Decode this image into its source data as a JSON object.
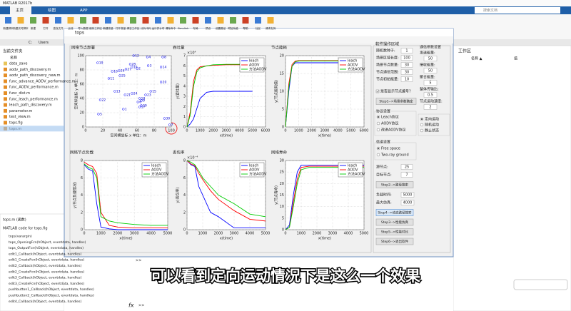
{
  "app": {
    "title": "MATLAB R2017b",
    "tabs": [
      "主页",
      "绘图",
      "APP"
    ],
    "search": "搜索文档",
    "ribbon": [
      "新建脚本",
      "新建实时脚本",
      "新建",
      "打开",
      "查找文件",
      "比较",
      "导入数据",
      "保存工作区",
      "新建变量",
      "打开变量",
      "清空工作区",
      "分析代码",
      "运行并计时",
      "清除命令",
      "Simulink",
      "布局",
      "预设",
      "设置路径",
      "附加功能",
      "帮助",
      "社区",
      "请求支持"
    ],
    "path": [
      "C:",
      "Users"
    ]
  },
  "files": {
    "header": "当前文件夹",
    "column": "名称",
    "items": [
      "data_save",
      "aodv_path_discovery.m",
      "aodv_path_discovery_new.m",
      "func_advance_AODV_performance.m",
      "func_AODV_performance.m",
      "func_dist.m",
      "func_leach_performance.m",
      "leach_path_discovery.m",
      "parameter.m",
      "test_view.m",
      "tops.fig",
      "tops.m"
    ]
  },
  "details": {
    "title": "tops.m (函数)",
    "desc": "MATLAB code for tops.fig",
    "items": [
      "tops(varargin)",
      "tops_OpeningFcn(hObject, eventdata, handles)",
      "tops_OutputFcn(hObject, eventdata, handles)",
      "edit1_Callback(hObject, eventdata, handles)",
      "edit1_CreateFcn(hObject, eventdata, handles)",
      "edit2_Callback(hObject, eventdata, handles)",
      "edit2_CreateFcn(hObject, eventdata, handles)",
      "edit3_Callback(hObject, eventdata, handles)",
      "edit3_CreateFcn(hObject, eventdata, handles)",
      "pushbutton1_Callback(hObject, eventdata, handles)",
      "pushbutton2_Callback(hObject, eventdata, handles)",
      "edit4_Callback(hObject, eventdata, handles)"
    ]
  },
  "workspace": {
    "title": "工作区",
    "name": "名称 ▲",
    "value": "值"
  },
  "command": {
    "prompt": ">>",
    "fx": "fx"
  },
  "subtitle": "可以看到定向运动情况下是这么一个效果",
  "figure": {
    "title": "tops",
    "plots": [
      {
        "type": "scatter",
        "title": "网络节点部署",
        "xlabel": "空间横坐标 x  单位：m",
        "ylabel": "空间纵坐标 y  单位：m",
        "xlim": [
          0,
          100
        ],
        "ylim": [
          0,
          100
        ],
        "xticks": [
          0,
          20,
          40,
          60,
          80,
          100
        ],
        "yticks": [
          0,
          20,
          40,
          60,
          80,
          100
        ],
        "x": [
          44,
          60,
          73,
          72,
          15,
          61,
          98,
          90,
          65,
          54,
          27,
          56,
          34,
          88,
          76,
          31,
          63,
          63,
          14,
          88,
          46,
          17,
          70,
          54,
          40,
          39,
          47,
          52,
          65,
          92
        ],
        "y": [
          25,
          82,
          86,
          98,
          18,
          35,
          3,
          98,
          37,
          84,
          68,
          100,
          50,
          84,
          50,
          78,
          28,
          40,
          90,
          63,
          45,
          38,
          45,
          47,
          72,
          79,
          81,
          88,
          30,
          12
        ],
        "labels": [
          1,
          2,
          3,
          4,
          5,
          6,
          7,
          8,
          9,
          10,
          11,
          12,
          13,
          14,
          15,
          16,
          17,
          18,
          19,
          20,
          21,
          22,
          23,
          24,
          25,
          26,
          27,
          28,
          29,
          30
        ]
      },
      {
        "type": "line",
        "title": "吞吐量",
        "multiplier": "×10⁴",
        "xlabel": "x(time)",
        "ylabel": "y(吞吐量)",
        "xlim": [
          0,
          6000
        ],
        "ylim": [
          0,
          7
        ],
        "xticks": [
          0,
          1000,
          2000,
          3000,
          4000,
          5000,
          6000
        ],
        "yticks": [
          0,
          1,
          2,
          3,
          4,
          5,
          6,
          7
        ],
        "x": [
          0,
          250,
          500,
          750,
          1000,
          1500,
          2000,
          3000,
          4000,
          5000
        ],
        "series": [
          {
            "name": "leach",
            "color": "#0000ff",
            "values": [
              0,
              0.3,
              0.8,
              1.8,
              2.8,
              3.4,
              3.5,
              3.5,
              3.5,
              3.5
            ]
          },
          {
            "name": "AODV",
            "color": "#ff0000",
            "values": [
              0,
              1.5,
              4.5,
              5.6,
              5.9,
              6,
              6.05,
              6.1,
              6.1,
              6.1
            ]
          },
          {
            "name": "方法AODV",
            "color": "#00cc00",
            "values": [
              0,
              1.2,
              4,
              5.4,
              5.8,
              6,
              6.1,
              6.15,
              6.15,
              6.15
            ]
          }
        ]
      },
      {
        "type": "line",
        "title": "节点能耗",
        "xlabel": "x(time)",
        "ylabel": "y(节点能耗值)",
        "xlim": [
          0,
          6000
        ],
        "ylim": [
          0,
          20
        ],
        "xticks": [
          0,
          1000,
          2000,
          3000,
          4000,
          5000,
          6000
        ],
        "yticks": [
          0,
          5,
          10,
          15,
          20
        ],
        "x": [
          0,
          250,
          500,
          750,
          1000,
          1500,
          2000,
          3000,
          4000,
          5000
        ],
        "series": [
          {
            "name": "leach",
            "color": "#0000ff",
            "values": [
              0,
              10,
              17,
              18,
              18,
              18,
              18,
              18,
              18,
              18
            ]
          },
          {
            "name": "AODV",
            "color": "#ff0000",
            "values": [
              0,
              12,
              17.5,
              18.5,
              18.6,
              18.6,
              18.6,
              18.6,
              18.6,
              18.6
            ]
          },
          {
            "name": "方法AODV",
            "color": "#00cc00",
            "values": [
              0,
              11,
              17,
              18.3,
              18.5,
              18.5,
              18.5,
              18.5,
              18.5,
              18.5
            ]
          }
        ]
      },
      {
        "type": "line",
        "title": "网络节点负载",
        "xlabel": "x(time)",
        "ylabel": "y(节点负载情况)",
        "xlim": [
          0,
          5000
        ],
        "ylim": [
          0,
          8
        ],
        "xticks": [
          0,
          1000,
          2000,
          3000,
          4000,
          5000
        ],
        "yticks": [
          0,
          2,
          4,
          6,
          8
        ],
        "x": [
          0,
          250,
          500,
          750,
          1000,
          1500,
          2000,
          3000,
          4000,
          5000
        ],
        "series": [
          {
            "name": "leach",
            "color": "#0000ff",
            "values": [
              7.5,
              7,
              6.8,
              3,
              0.3,
              0.1,
              0,
              0,
              0,
              0
            ]
          },
          {
            "name": "AODV",
            "color": "#ff0000",
            "values": [
              7.8,
              7.5,
              7.3,
              6.5,
              2,
              0.5,
              0.3,
              0.2,
              0.2,
              0.2
            ]
          },
          {
            "name": "方法AODV",
            "color": "#00cc00",
            "values": [
              7.6,
              7.2,
              7,
              6,
              1.5,
              1,
              0.8,
              0.6,
              0.5,
              0.5
            ]
          }
        ]
      },
      {
        "type": "line",
        "title": "丢包率",
        "multiplier": "×10⁻⁴",
        "xlabel": "x(time)",
        "ylabel": "y(丢包率)",
        "xlim": [
          0,
          5000
        ],
        "ylim": [
          0,
          8
        ],
        "xticks": [
          0,
          1000,
          2000,
          3000,
          4000,
          5000
        ],
        "yticks": [
          0,
          2,
          4,
          6,
          8
        ],
        "x": [
          0,
          250,
          500,
          750,
          1000,
          1500,
          2000,
          3000,
          4000,
          5000
        ],
        "series": [
          {
            "name": "leach",
            "color": "#0000ff",
            "values": [
              8,
              7.5,
              7.3,
              5,
              4,
              2,
              1.5,
              0.2,
              0.2,
              0.2
            ]
          },
          {
            "name": "AODV",
            "color": "#ff0000",
            "values": [
              8,
              7.6,
              7.4,
              6.5,
              5.8,
              4.5,
              3.5,
              2.2,
              1.2,
              1
            ]
          },
          {
            "name": "方法AODV",
            "color": "#00cc00",
            "values": [
              8,
              7.8,
              7.5,
              6.8,
              6,
              5,
              4,
              3,
              1.8,
              1.5
            ]
          }
        ]
      },
      {
        "type": "line",
        "title": "网络寿命",
        "xlabel": "x(time)",
        "ylabel": "y(节点寿命)",
        "xlim": [
          0,
          5000
        ],
        "ylim": [
          0,
          30
        ],
        "xticks": [
          0,
          1000,
          2000,
          3000,
          4000,
          5000
        ],
        "yticks": [
          0,
          5,
          10,
          15,
          20,
          25,
          30
        ],
        "x": [
          0,
          250,
          500,
          750,
          1000,
          1500,
          2000,
          3000,
          4000,
          5000
        ],
        "series": [
          {
            "name": "leach",
            "color": "#0000ff",
            "values": [
              0,
              2,
              15,
              25,
              28,
              28,
              28,
              28,
              28,
              28
            ]
          },
          {
            "name": "AODV",
            "color": "#ff0000",
            "values": [
              0,
              1,
              12,
              22,
              27,
              27.5,
              27.5,
              27.5,
              27.5,
              27.5
            ]
          },
          {
            "name": "方法AODV",
            "color": "#00cc00",
            "values": [
              0,
              1,
              10,
              20,
              26,
              27,
              27,
              27,
              27,
              27
            ]
          }
        ]
      }
    ],
    "panel": {
      "title": "软件操作区域",
      "params": [
        {
          "label": "随机数种子:",
          "value": 1
        },
        {
          "label": "场景区域长度:",
          "value": 100
        },
        {
          "label": "场景节点数量:",
          "value": 30
        },
        {
          "label": "节点通信范围:",
          "value": 30
        },
        {
          "label": "节点初始能量:",
          "value": 10
        }
      ],
      "checkbox": "是否显示节点编号?",
      "step1": "Step1-->场景参数确定",
      "protocol": {
        "title": "协议设置",
        "options": [
          "Leach协议",
          "AODV协议",
          "改进AODV协议"
        ]
      },
      "comm": {
        "title": "通信参数设置",
        "params": [
          {
            "label": "发送能量:",
            "value": 50
          },
          {
            "label": "接收能量:",
            "value": 50
          },
          {
            "label": "聚合能量:",
            "value": 5
          },
          {
            "label": "整体传输比:",
            "value": 0.5
          },
          {
            "label": "节点运动速度:",
            "value": 2
          }
        ]
      },
      "motion": [
        "定向运动",
        "随机运动",
        "静止状态"
      ],
      "channel": {
        "title": "信道设置",
        "options": [
          "Free space",
          "Two-ray ground"
        ]
      },
      "route": [
        {
          "label": "源节点:",
          "value": 25
        },
        {
          "label": "目标节点:",
          "value": 7
        }
      ],
      "step2": "Step2-->路径搜索",
      "sim": [
        {
          "label": "负载时间:",
          "value": 5000
        },
        {
          "label": "最大仿真:",
          "value": 4000
        }
      ],
      "steps": [
        "Step4-->动态路径搜索",
        "Step3-->性能仿真",
        "Step5-->性能对比",
        "Step6-->退出软件"
      ]
    }
  }
}
